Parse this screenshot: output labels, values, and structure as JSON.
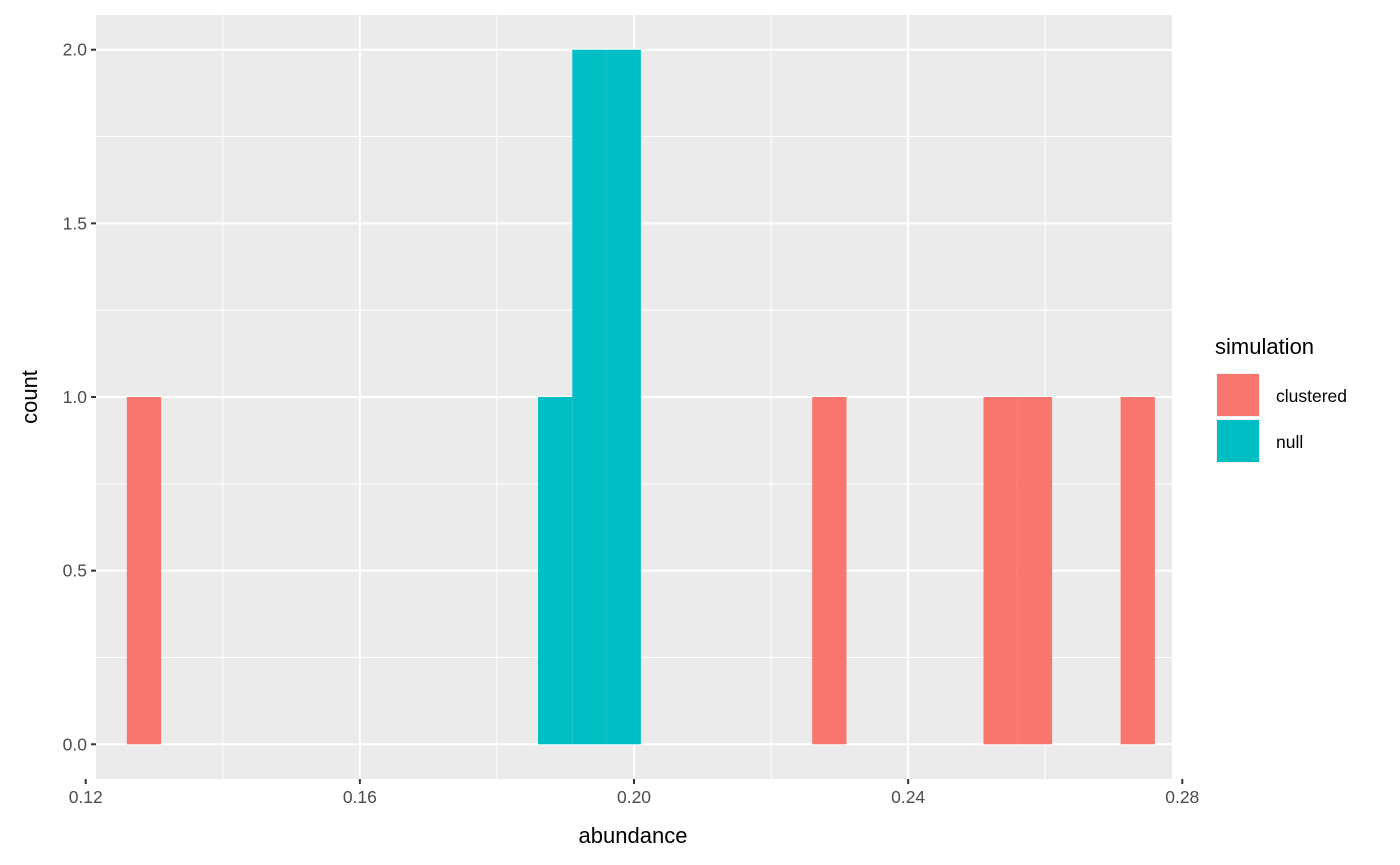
{
  "chart_data": {
    "type": "bar",
    "subtype": "histogram",
    "xlabel": "abundance",
    "ylabel": "count",
    "xlim": [
      0.1215,
      0.2785
    ],
    "ylim": [
      -0.1,
      2.1
    ],
    "x_ticks": [
      {
        "value": 0.12,
        "label": "0.12"
      },
      {
        "value": 0.16,
        "label": "0.16"
      },
      {
        "value": 0.2,
        "label": "0.20"
      },
      {
        "value": 0.24,
        "label": "0.24"
      },
      {
        "value": 0.28,
        "label": "0.28"
      }
    ],
    "y_ticks": [
      {
        "value": 0.0,
        "label": "0.0"
      },
      {
        "value": 0.5,
        "label": "0.5"
      },
      {
        "value": 1.0,
        "label": "1.0"
      },
      {
        "value": 1.5,
        "label": "1.5"
      },
      {
        "value": 2.0,
        "label": "2.0"
      }
    ],
    "bin_width": 0.005,
    "grid": true,
    "panel_background": "#ebebeb",
    "legend": {
      "title": "simulation",
      "position": "right"
    },
    "series": [
      {
        "name": "clustered",
        "color": "#f8766d",
        "bins": [
          {
            "xmin": 0.126,
            "xmax": 0.131,
            "count": 1
          },
          {
            "xmin": 0.226,
            "xmax": 0.231,
            "count": 1
          },
          {
            "xmin": 0.251,
            "xmax": 0.256,
            "count": 1
          },
          {
            "xmin": 0.256,
            "xmax": 0.261,
            "count": 1
          },
          {
            "xmin": 0.271,
            "xmax": 0.276,
            "count": 1
          }
        ]
      },
      {
        "name": "null",
        "color": "#00bfc4",
        "bins": [
          {
            "xmin": 0.186,
            "xmax": 0.191,
            "count": 1
          },
          {
            "xmin": 0.191,
            "xmax": 0.196,
            "count": 2
          },
          {
            "xmin": 0.196,
            "xmax": 0.201,
            "count": 2
          }
        ]
      }
    ]
  }
}
